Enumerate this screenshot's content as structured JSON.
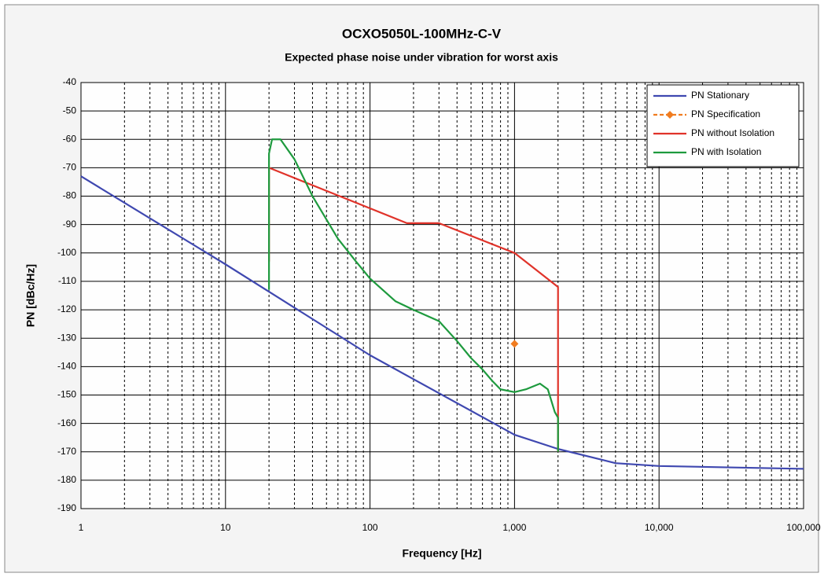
{
  "chart_data": {
    "type": "line",
    "title": "OCXO5050L-100MHz-C-V",
    "subtitle": "Expected phase noise under vibration for worst axis",
    "x_label": "Frequency [Hz]",
    "y_label": "PN [dBc/Hz]",
    "x_scale": "log",
    "xlim": [
      1,
      100000
    ],
    "xticks": [
      1,
      10,
      100,
      {
        "value": 1000,
        "label": "1,000"
      },
      {
        "value": 10000,
        "label": "10,000"
      },
      {
        "value": 100000,
        "label": "100,000"
      }
    ],
    "ylim": [
      -190,
      -40
    ],
    "yticks": [
      -40,
      -50,
      -60,
      -70,
      -80,
      -90,
      -100,
      -110,
      -120,
      -130,
      -140,
      -150,
      -160,
      -170,
      -180,
      -190
    ],
    "grid": true,
    "legend": "top-right",
    "series": [
      {
        "name": "PN Stationary",
        "color": "#3f48b0",
        "style": "line",
        "x": [
          1,
          10,
          100,
          1000,
          2000,
          5000,
          10000,
          100000
        ],
        "values": [
          -73,
          -104,
          -136,
          -164,
          -169,
          -174,
          -175,
          -176
        ]
      },
      {
        "name": "PN Specification",
        "color": "#f07c20",
        "style": "marker",
        "x": [
          1000
        ],
        "values": [
          -132
        ]
      },
      {
        "name": "PN without Isolation",
        "color": "#e0332a",
        "style": "line",
        "x": [
          20,
          20,
          180,
          300,
          1000,
          2000,
          2000
        ],
        "values": [
          -103,
          -70,
          -89.5,
          -89.5,
          -100,
          -112,
          -170
        ]
      },
      {
        "name": "PN with Isolation",
        "color": "#1e9a3e",
        "style": "line",
        "x": [
          20,
          20,
          21,
          24,
          30,
          40,
          60,
          80,
          100,
          150,
          200,
          300,
          400,
          500,
          600,
          700,
          800,
          1000,
          1200,
          1500,
          1700,
          1900,
          2000,
          2000
        ],
        "values": [
          -113,
          -65,
          -60,
          -60,
          -67,
          -80,
          -95,
          -103,
          -109,
          -117,
          -120,
          -124,
          -131,
          -137,
          -141,
          -145,
          -148,
          -149,
          -148,
          -146,
          -148,
          -156,
          -158,
          -170
        ]
      }
    ]
  }
}
